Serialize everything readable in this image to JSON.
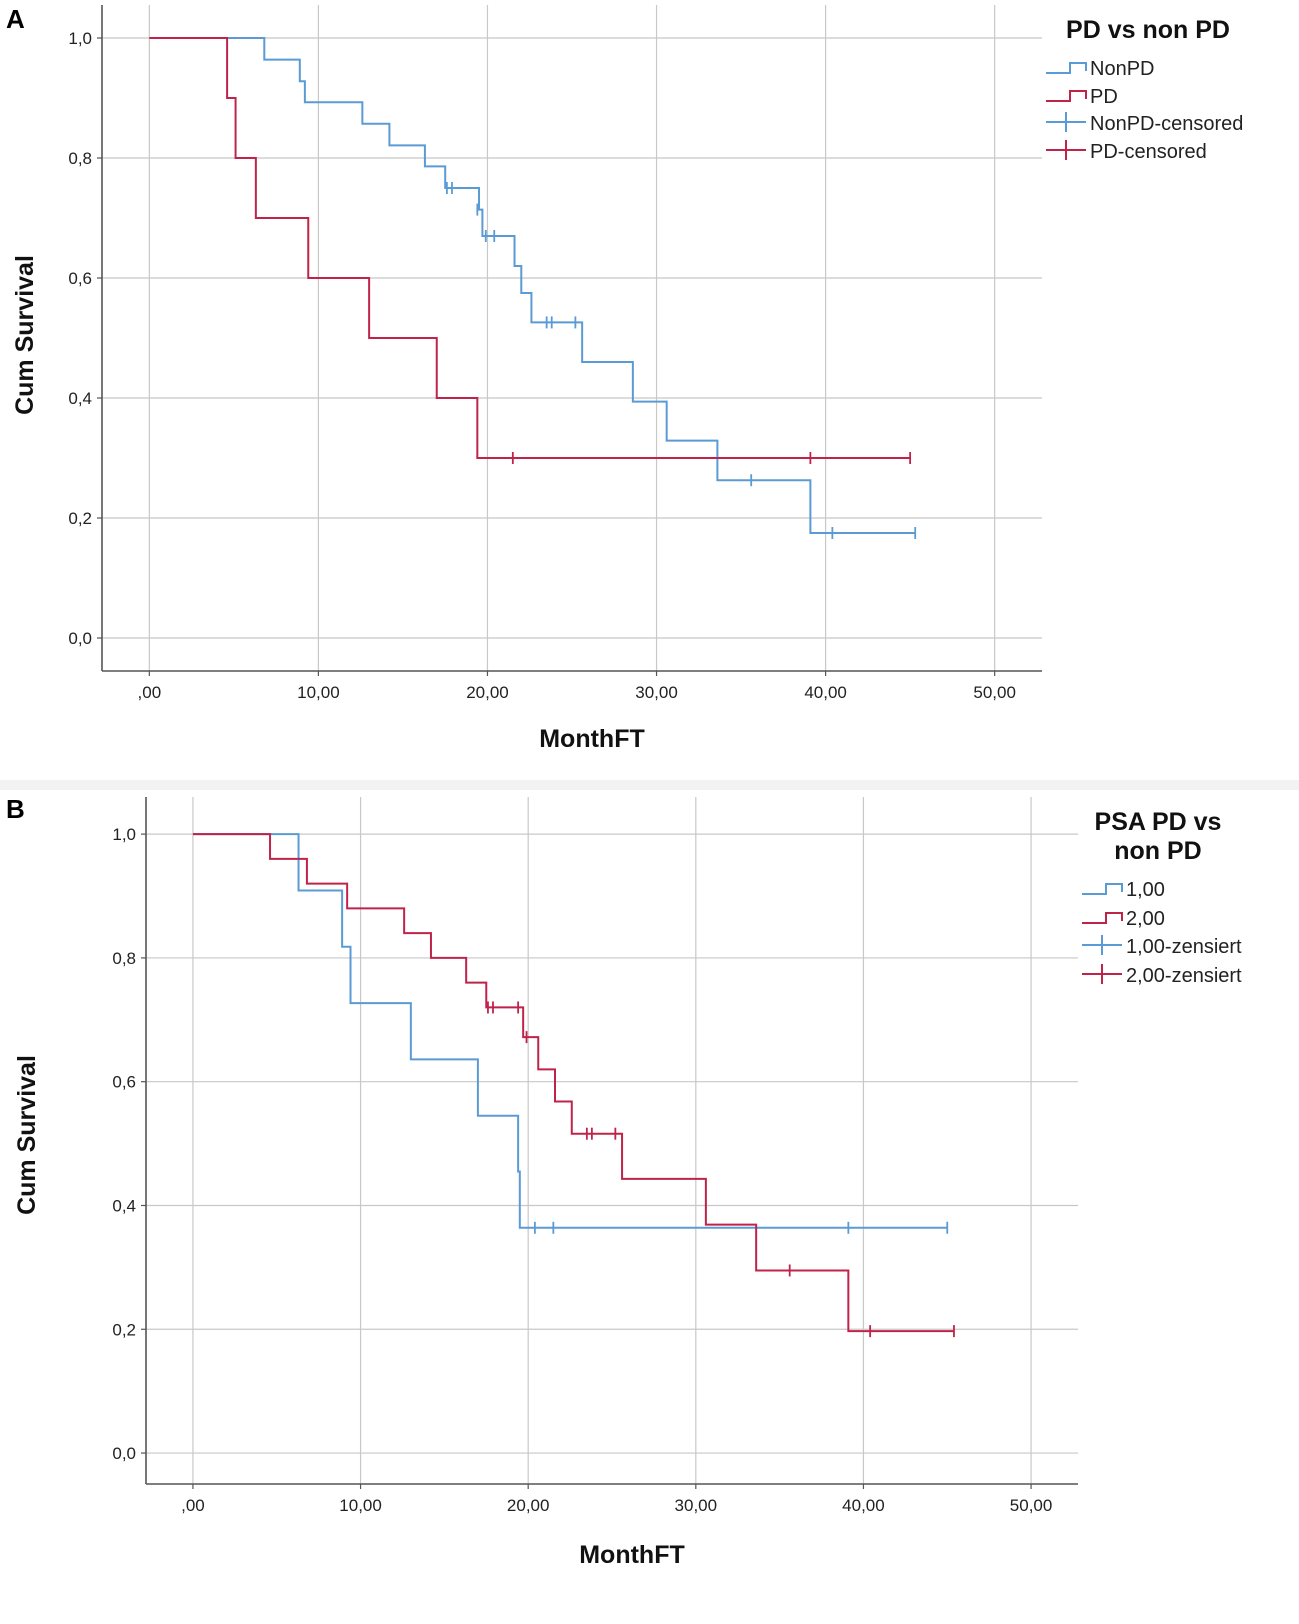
{
  "charts": [
    {
      "type": "line",
      "panel_label": "A",
      "legend_title": [
        "PD vs non PD"
      ],
      "xlabel": "MonthFT",
      "ylabel": "Cum Survival",
      "x_ticks": [
        ",00",
        "10,00",
        "20,00",
        "30,00",
        "40,00",
        "50,00"
      ],
      "y_ticks": [
        "0,0",
        "0,2",
        "0,4",
        "0,6",
        "0,8",
        "1,0"
      ],
      "legend": [
        "NonPD",
        "PD",
        "NonPD-censored",
        "PD-censored"
      ],
      "colors": {
        "blue": "#5b9bd5",
        "red": "#c0234a",
        "grid": "#c8c8c8",
        "axis": "#555555"
      }
    },
    {
      "type": "line",
      "panel_label": "B",
      "legend_title": [
        "PSA PD vs",
        "non PD"
      ],
      "xlabel": "MonthFT",
      "ylabel": "Cum Survival",
      "x_ticks": [
        ",00",
        "10,00",
        "20,00",
        "30,00",
        "40,00",
        "50,00"
      ],
      "y_ticks": [
        "0,0",
        "0,2",
        "0,4",
        "0,6",
        "0,8",
        "1,0"
      ],
      "legend": [
        "1,00",
        "2,00",
        "1,00-zensiert",
        "2,00-zensiert"
      ],
      "colors": {
        "blue": "#5b9bd5",
        "red": "#c0234a",
        "grid": "#c8c8c8",
        "axis": "#555555"
      }
    }
  ],
  "chart_data": [
    {
      "type": "line",
      "title": "",
      "xlabel": "MonthFT",
      "ylabel": "Cum Survival",
      "xlim": [
        -2.8,
        52.8
      ],
      "ylim": [
        -0.055,
        1.055
      ],
      "series": [
        {
          "name": "NonPD",
          "color": "#5b9bd5",
          "steps": [
            [
              0,
              1.0
            ],
            [
              6.8,
              0.964
            ],
            [
              8.9,
              0.928
            ],
            [
              9.2,
              0.893
            ],
            [
              12.6,
              0.857
            ],
            [
              14.2,
              0.821
            ],
            [
              16.3,
              0.786
            ],
            [
              17.5,
              0.75
            ],
            [
              19.5,
              0.714
            ],
            [
              19.7,
              0.67
            ],
            [
              21.6,
              0.62
            ],
            [
              22.0,
              0.575
            ],
            [
              22.6,
              0.526
            ],
            [
              25.6,
              0.46
            ],
            [
              28.6,
              0.394
            ],
            [
              30.6,
              0.329
            ],
            [
              33.6,
              0.263
            ],
            [
              39.1,
              0.175
            ]
          ],
          "end_x": 45.3,
          "censored": [
            [
              17.6,
              0.75
            ],
            [
              17.9,
              0.75
            ],
            [
              19.4,
              0.714
            ],
            [
              19.9,
              0.67
            ],
            [
              20.4,
              0.67
            ],
            [
              23.5,
              0.526
            ],
            [
              23.8,
              0.526
            ],
            [
              25.2,
              0.526
            ],
            [
              35.6,
              0.263
            ],
            [
              40.4,
              0.175
            ],
            [
              45.3,
              0.175
            ]
          ]
        },
        {
          "name": "PD",
          "color": "#c0234a",
          "steps": [
            [
              0,
              1.0
            ],
            [
              4.6,
              0.9
            ],
            [
              5.1,
              0.8
            ],
            [
              6.3,
              0.7
            ],
            [
              9.4,
              0.6
            ],
            [
              13.0,
              0.5
            ],
            [
              17.0,
              0.4
            ],
            [
              19.4,
              0.3
            ]
          ],
          "end_x": 45.0,
          "censored": [
            [
              21.5,
              0.3
            ],
            [
              39.1,
              0.3
            ],
            [
              45.0,
              0.3
            ]
          ]
        }
      ]
    },
    {
      "type": "line",
      "title": "",
      "xlabel": "MonthFT",
      "ylabel": "Cum Survival",
      "xlim": [
        -2.8,
        52.8
      ],
      "ylim": [
        -0.05,
        1.06
      ],
      "series": [
        {
          "name": "1,00",
          "color": "#5b9bd5",
          "steps": [
            [
              0,
              1.0
            ],
            [
              6.3,
              0.909
            ],
            [
              8.9,
              0.818
            ],
            [
              9.4,
              0.727
            ],
            [
              13.0,
              0.636
            ],
            [
              17.0,
              0.545
            ],
            [
              19.4,
              0.455
            ],
            [
              19.5,
              0.364
            ]
          ],
          "end_x": 45.0,
          "censored": [
            [
              20.4,
              0.364
            ],
            [
              21.5,
              0.364
            ],
            [
              39.1,
              0.364
            ],
            [
              45.0,
              0.364
            ]
          ]
        },
        {
          "name": "2,00",
          "color": "#c0234a",
          "steps": [
            [
              0,
              1.0
            ],
            [
              4.6,
              0.96
            ],
            [
              6.8,
              0.92
            ],
            [
              9.2,
              0.88
            ],
            [
              12.6,
              0.84
            ],
            [
              14.2,
              0.8
            ],
            [
              16.3,
              0.76
            ],
            [
              17.5,
              0.72
            ],
            [
              19.7,
              0.672
            ],
            [
              20.6,
              0.62
            ],
            [
              21.6,
              0.568
            ],
            [
              22.6,
              0.516
            ],
            [
              25.6,
              0.443
            ],
            [
              30.6,
              0.369
            ],
            [
              33.6,
              0.295
            ],
            [
              39.1,
              0.197
            ]
          ],
          "end_x": 45.4,
          "censored": [
            [
              17.6,
              0.72
            ],
            [
              17.9,
              0.72
            ],
            [
              19.4,
              0.72
            ],
            [
              19.9,
              0.672
            ],
            [
              23.5,
              0.516
            ],
            [
              23.8,
              0.516
            ],
            [
              25.2,
              0.516
            ],
            [
              35.6,
              0.295
            ],
            [
              40.4,
              0.197
            ],
            [
              45.4,
              0.197
            ]
          ]
        }
      ]
    }
  ]
}
